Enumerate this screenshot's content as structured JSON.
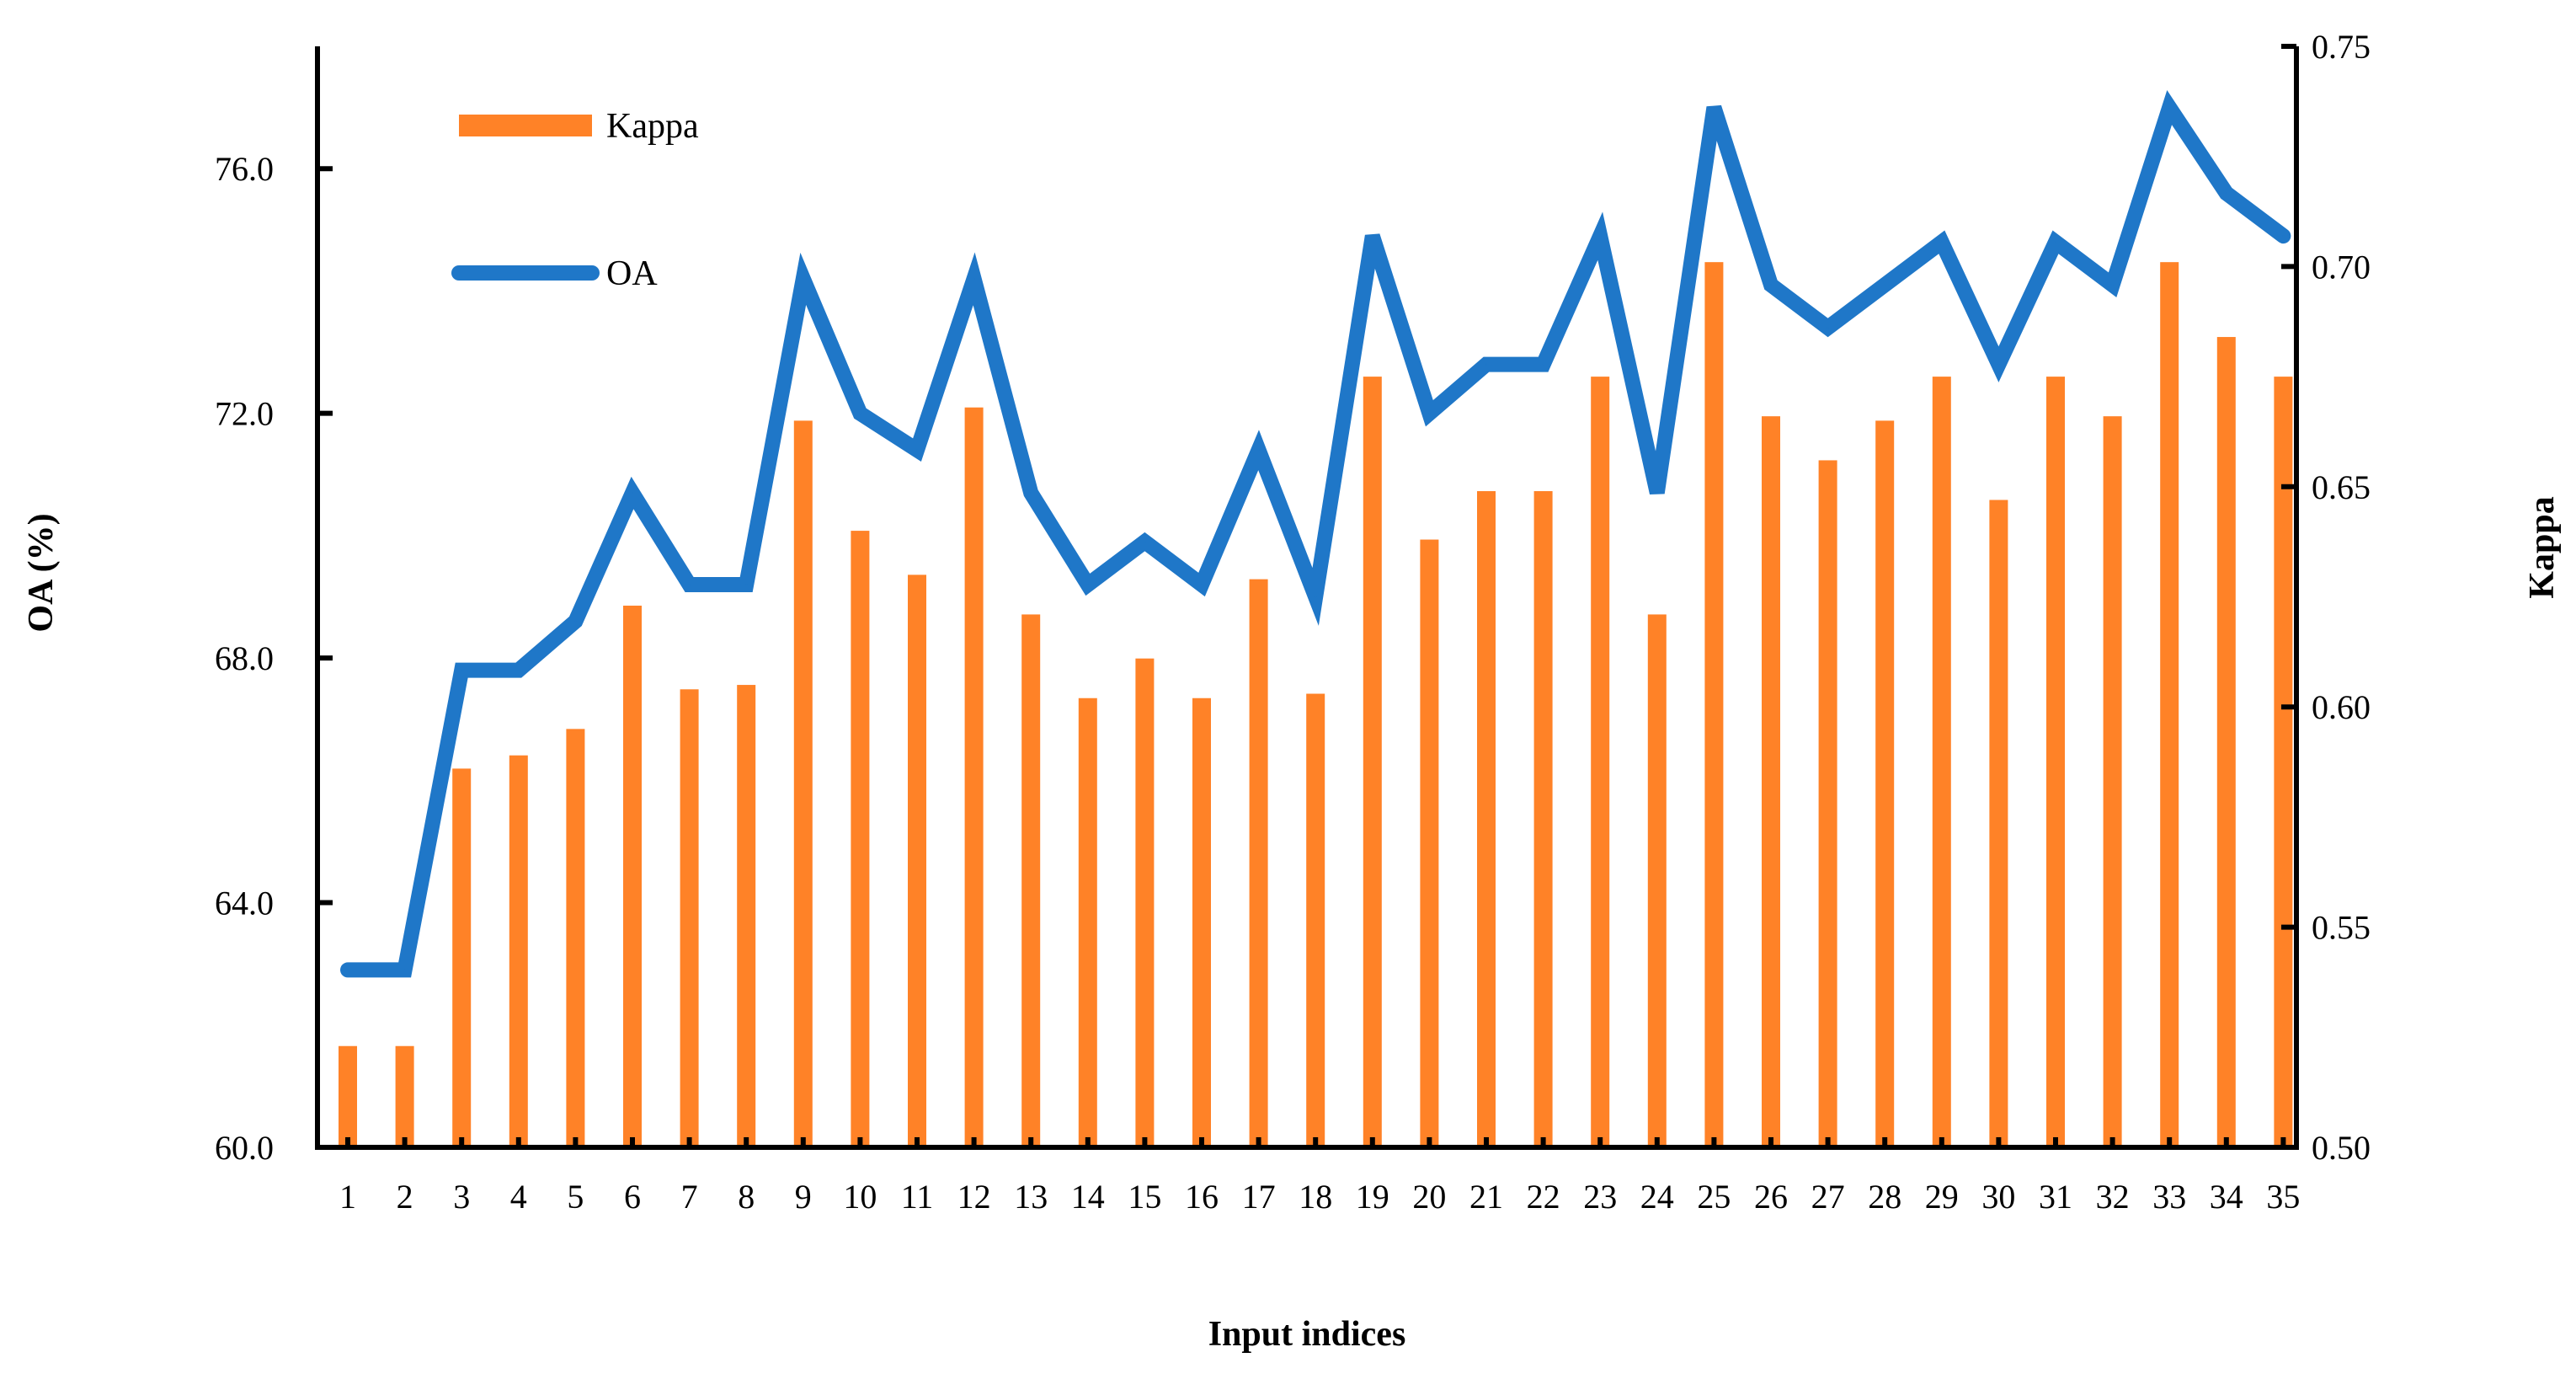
{
  "chart_data": {
    "type": "bar+line",
    "title": "",
    "xlabel": "Input indices",
    "ylabel_left": "OA (%)",
    "ylabel_right": "Kappa",
    "categories": [
      "1",
      "2",
      "3",
      "4",
      "5",
      "6",
      "7",
      "8",
      "9",
      "10",
      "11",
      "12",
      "13",
      "14",
      "15",
      "16",
      "17",
      "18",
      "19",
      "20",
      "21",
      "22",
      "23",
      "24",
      "25",
      "26",
      "27",
      "28",
      "29",
      "30",
      "31",
      "32",
      "33",
      "34",
      "35"
    ],
    "ylim_left": [
      60.0,
      78.0
    ],
    "ylim_right": [
      0.5,
      0.75
    ],
    "yticks_left": [
      "60.0",
      "64.0",
      "68.0",
      "72.0",
      "76.0"
    ],
    "yticks_right": [
      "0.50",
      "0.55",
      "0.60",
      "0.65",
      "0.70",
      "0.75"
    ],
    "series": [
      {
        "name": "Kappa",
        "type": "bar",
        "axis": "right",
        "color": "#FF8227",
        "values": [
          0.523,
          0.523,
          0.586,
          0.589,
          0.595,
          0.623,
          0.604,
          0.605,
          0.665,
          0.64,
          0.63,
          0.668,
          0.621,
          0.602,
          0.611,
          0.602,
          0.629,
          0.603,
          0.675,
          0.638,
          0.649,
          0.649,
          0.675,
          0.621,
          0.701,
          0.666,
          0.656,
          0.665,
          0.675,
          0.647,
          0.675,
          0.666,
          0.701,
          0.684,
          0.675
        ]
      },
      {
        "name": "OA",
        "type": "line",
        "axis": "left",
        "color": "#1F77C8",
        "values": [
          62.9,
          62.9,
          67.8,
          67.8,
          68.6,
          70.7,
          69.2,
          69.2,
          74.2,
          72.0,
          71.4,
          74.2,
          70.7,
          69.2,
          69.9,
          69.2,
          71.4,
          69.0,
          74.9,
          72.0,
          72.8,
          72.8,
          74.9,
          70.7,
          77.0,
          74.1,
          73.4,
          74.1,
          74.8,
          72.8,
          74.8,
          74.1,
          77.0,
          75.6,
          74.9
        ]
      }
    ],
    "legend": {
      "position": "top-left",
      "entries": [
        {
          "label": "Kappa",
          "color": "#FF8227",
          "kind": "bar"
        },
        {
          "label": "OA",
          "color": "#1F77C8",
          "kind": "line"
        }
      ]
    },
    "grid": false
  }
}
